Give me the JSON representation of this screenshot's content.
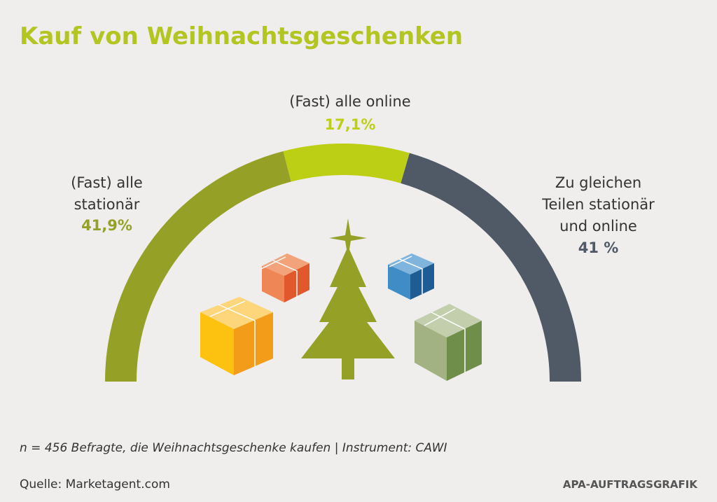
{
  "chart_data": {
    "type": "half-donut",
    "title": "Kauf von Weihnachtsgeschenken",
    "categories": [
      "(Fast) alle stationär",
      "(Fast) alle online",
      "Zu gleichen Teilen stationär und online"
    ],
    "values": [
      41.9,
      17.1,
      41
    ],
    "value_labels": [
      "41,9%",
      "17,1%",
      "41 %"
    ],
    "colors": [
      "#94a126",
      "#bccf14",
      "#505a66"
    ],
    "note": "n = 456 Befragte, die Weihnachtsgeschenke kaufen | Instrument: CAWI",
    "source": "Quelle: Marketagent.com",
    "credit": "APA-AUFTRAGSGRAFIK"
  }
}
